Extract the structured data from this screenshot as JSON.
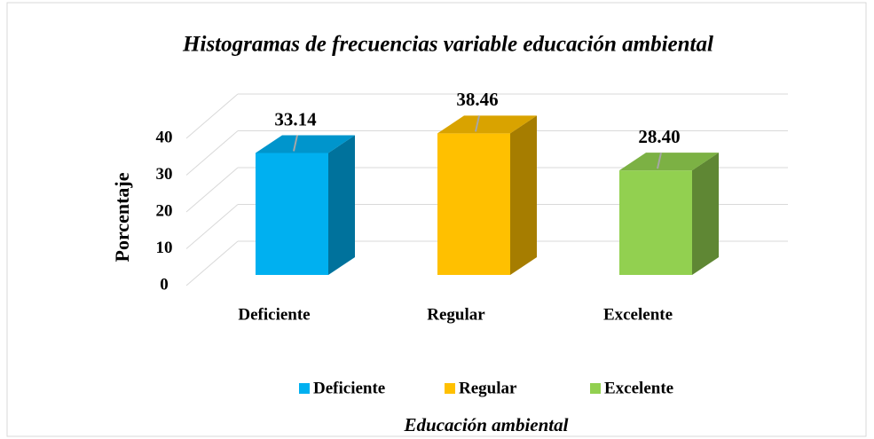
{
  "chart_data": {
    "type": "bar3d",
    "title": "Histogramas de frecuencias variable educación ambiental",
    "y_label": "Porcentaje",
    "x_label": "Educación ambiental",
    "categories": [
      "Deficiente",
      "Regular",
      "Excelente"
    ],
    "values": [
      33.14,
      38.46,
      28.4
    ],
    "value_labels": [
      "33.14",
      "38.46",
      "28.40"
    ],
    "colors": [
      "#00b0f0",
      "#ffc000",
      "#92d050"
    ],
    "ylim": [
      0,
      40
    ],
    "yticks": [
      0,
      10,
      20,
      30,
      40
    ],
    "grid": true,
    "legend": "bottom"
  }
}
